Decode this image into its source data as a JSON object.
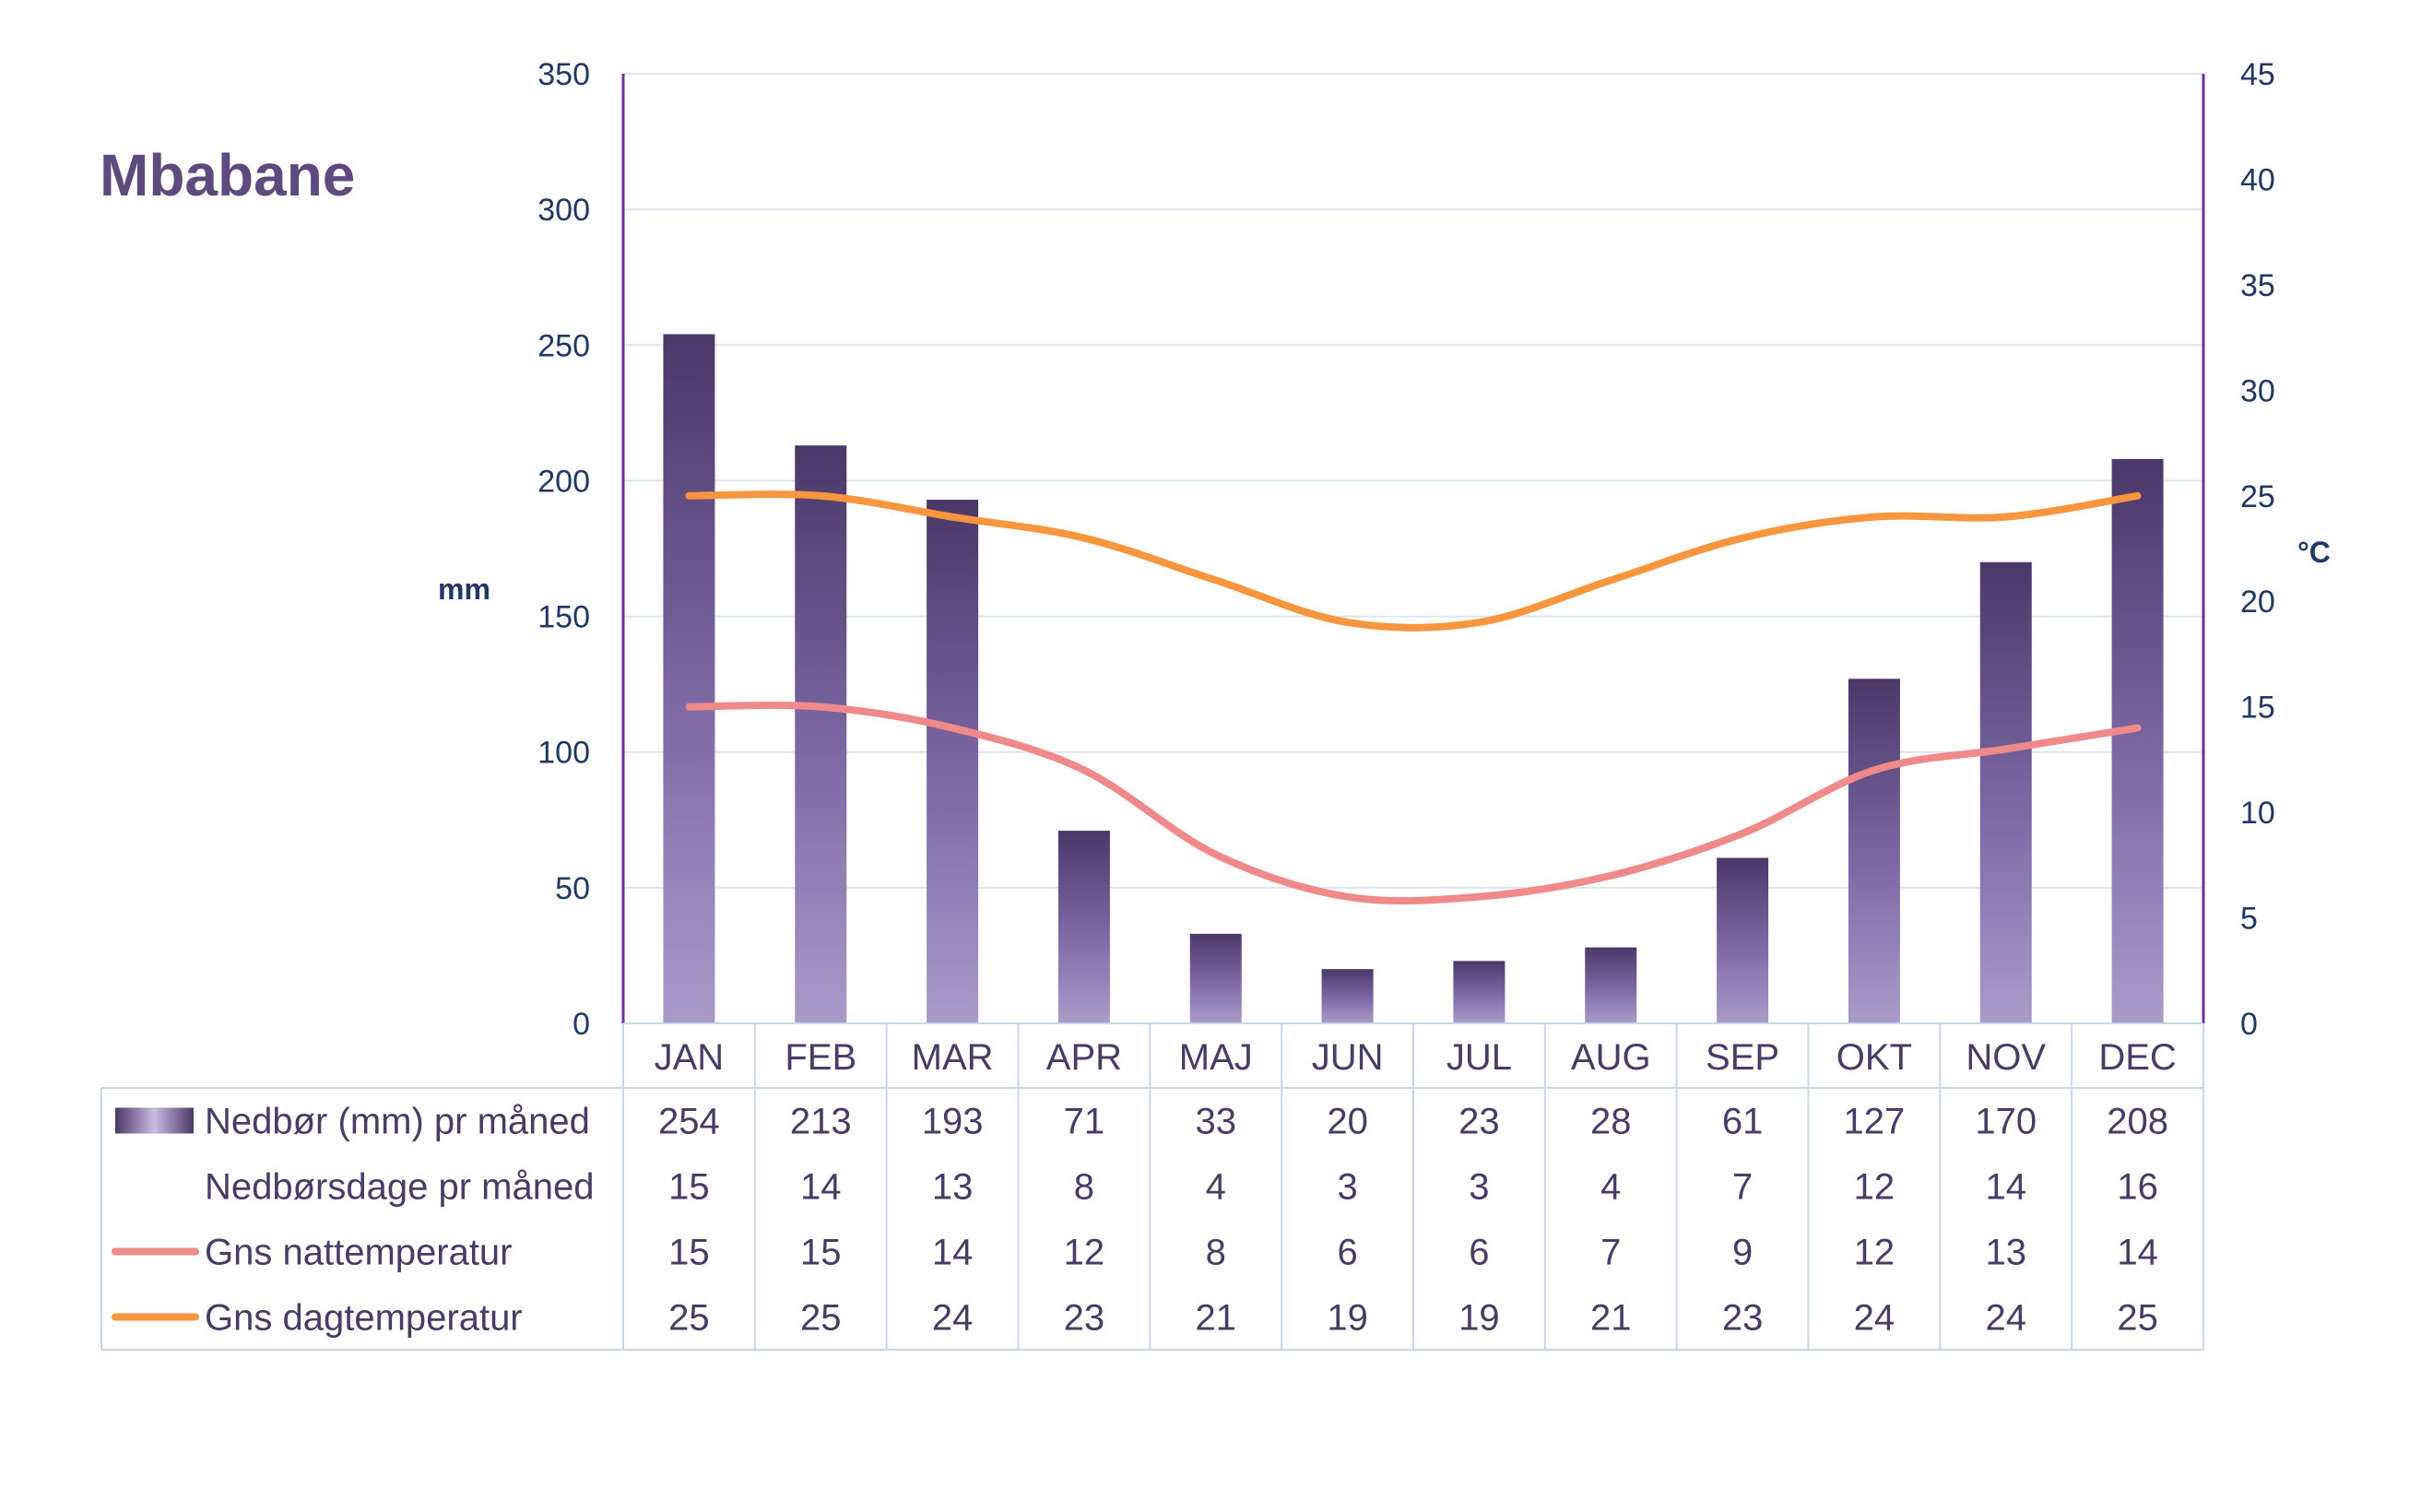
{
  "chart_data": {
    "type": "bar+line",
    "title": "Mbabane",
    "categories": [
      "JAN",
      "FEB",
      "MAR",
      "APR",
      "MAJ",
      "JUN",
      "JUL",
      "AUG",
      "SEP",
      "OKT",
      "NOV",
      "DEC"
    ],
    "y_left": {
      "label": "mm",
      "ylim": [
        0,
        350
      ],
      "ticks": [
        0,
        50,
        100,
        150,
        200,
        250,
        300,
        350
      ]
    },
    "y_right": {
      "label": "°C",
      "ylim": [
        0,
        45
      ],
      "ticks": [
        0,
        5,
        10,
        15,
        20,
        25,
        30,
        35,
        40,
        45
      ]
    },
    "grid": true,
    "series": [
      {
        "name": "Nedbør (mm) pr måned",
        "kind": "bar",
        "axis": "left",
        "values": [
          254,
          213,
          193,
          71,
          33,
          20,
          23,
          28,
          61,
          127,
          170,
          208
        ]
      },
      {
        "name": "Nedbørsdage pr måned",
        "kind": "table-only",
        "values": [
          15,
          14,
          13,
          8,
          4,
          3,
          3,
          4,
          7,
          12,
          14,
          16
        ]
      },
      {
        "name": "Gns nattemperatur",
        "kind": "line",
        "axis": "right",
        "color": "#f08a8a",
        "values": [
          15,
          15,
          14,
          12,
          8,
          6,
          6,
          7,
          9,
          12,
          13,
          14
        ]
      },
      {
        "name": "Gns dagtemperatur",
        "kind": "line",
        "axis": "right",
        "color": "#f7963f",
        "values": [
          25,
          25,
          24,
          23,
          21,
          19,
          19,
          21,
          23,
          24,
          24,
          25
        ]
      }
    ]
  },
  "colors": {
    "title": "#5e4a7e",
    "axis_text": "#1f3864",
    "table_text": "#4a3b66",
    "grid": "#dbe5f3",
    "axis_line": "#7030a0",
    "table_border": "#c9d7ec",
    "bar_top": "#4b3868",
    "bar_mid": "#7e6aa6",
    "bar_bottom": "#a99bc9"
  }
}
